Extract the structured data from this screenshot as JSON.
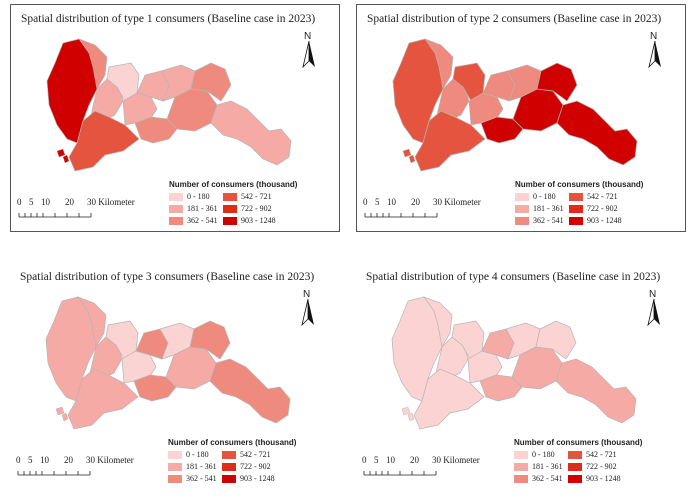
{
  "colors": {
    "c1": "#fbd3d3",
    "c2": "#f5aaa5",
    "c3": "#ef8a7e",
    "c4": "#e5543f",
    "c5": "#e02a1c",
    "c6": "#d10000"
  },
  "legend": {
    "title": "Number of consumers (thousand)",
    "ranges": [
      "0 - 180",
      "181 - 361",
      "362 - 541",
      "542 - 721",
      "722 - 902",
      "903 - 1248"
    ]
  },
  "scalebar": {
    "ticks": [
      "0",
      "5",
      "10",
      "20",
      "30 Kilometer"
    ]
  },
  "north_label": "N",
  "panels": [
    {
      "title": "Spatial distribution of type 1 consumers (Baseline case in 2023)",
      "region_classes": [
        6,
        3,
        2,
        1,
        4,
        2,
        3,
        2,
        2,
        3,
        3,
        2
      ]
    },
    {
      "title": "Spatial distribution of type 2 consumers (Baseline case in 2023)",
      "region_classes": [
        4,
        3,
        3,
        4,
        4,
        3,
        6,
        3,
        3,
        6,
        6,
        6
      ]
    },
    {
      "title": "Spatial distribution of type 3  consumers (Baseline case in 2023)",
      "region_classes": [
        2,
        2,
        2,
        1,
        2,
        1,
        3,
        3,
        1,
        2,
        3,
        3
      ]
    },
    {
      "title": "Spatial distribution of type 4  consumers (Baseline case in 2023)",
      "region_classes": [
        1,
        1,
        1,
        1,
        1,
        1,
        2,
        2,
        1,
        2,
        1,
        2
      ]
    }
  ]
}
